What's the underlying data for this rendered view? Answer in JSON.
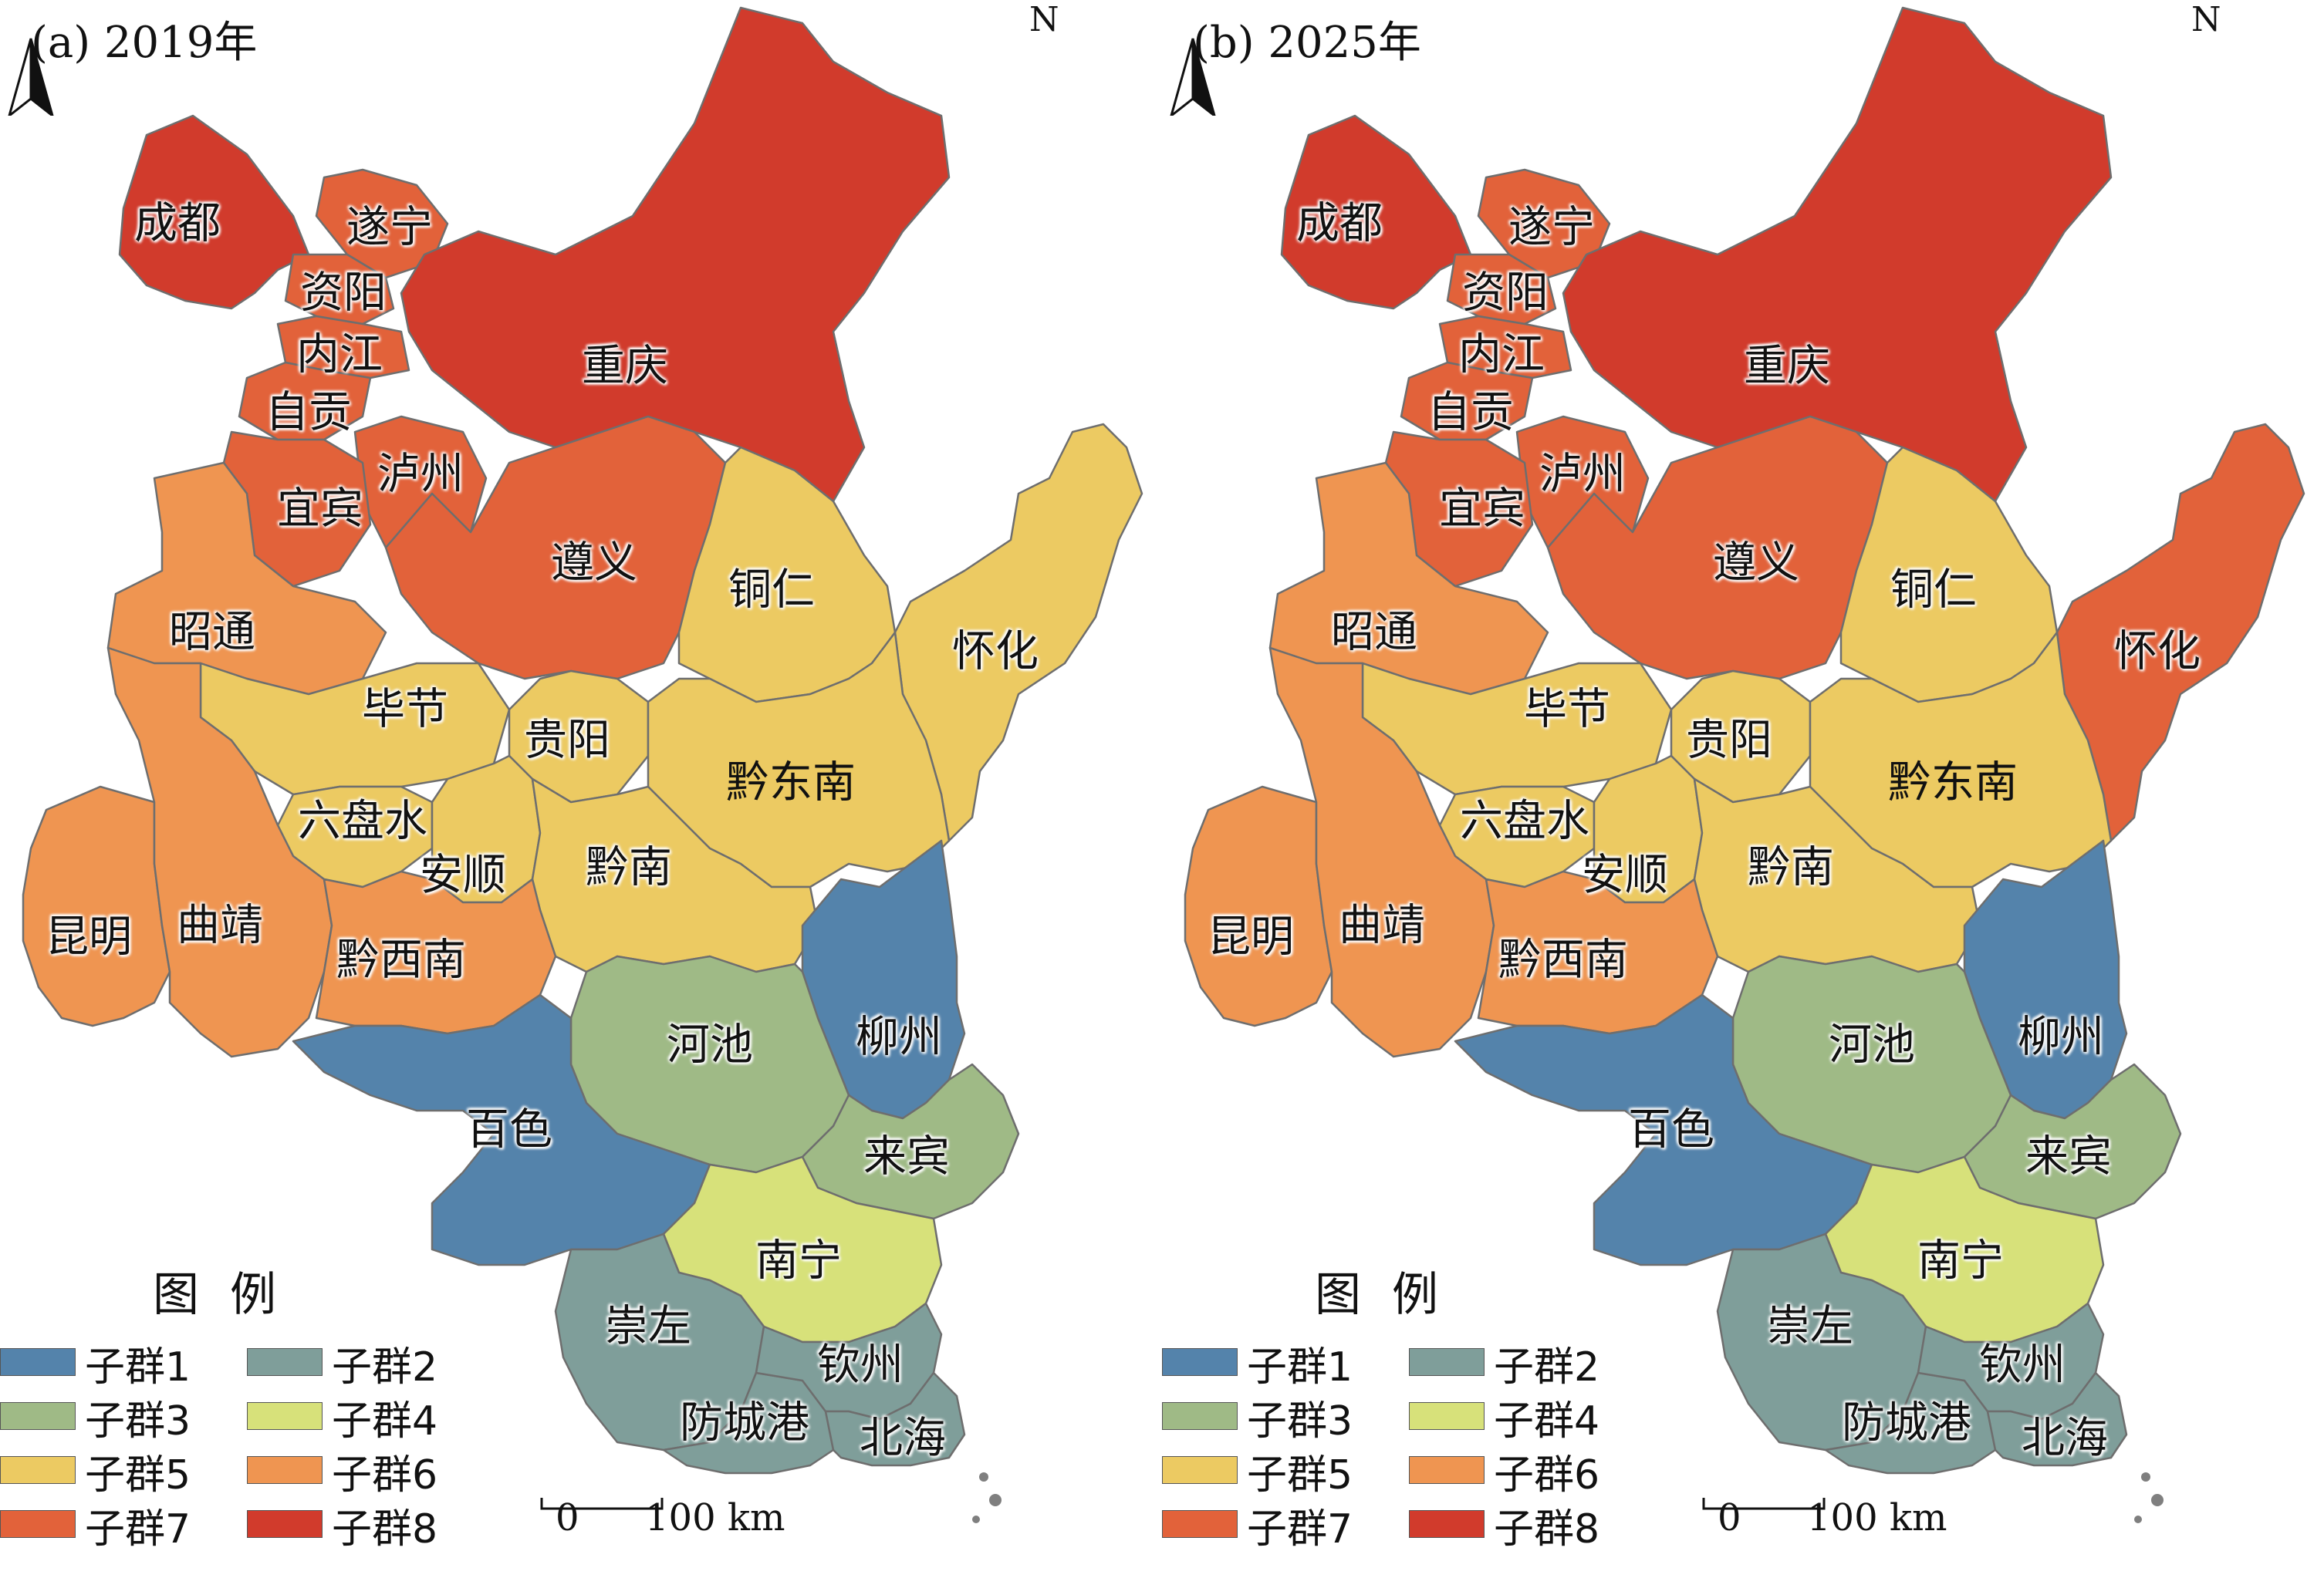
{
  "colors": {
    "子群1": "#5483ab",
    "子群2": "#7f9e9a",
    "子群3": "#9fba86",
    "子群4": "#d7e17a",
    "子群5": "#ecca62",
    "子群6": "#ef9551",
    "子群7": "#e2623a",
    "子群8": "#d13b2c",
    "border": "#6e6e6e"
  },
  "legend": {
    "title": "图例",
    "items": [
      "子群1",
      "子群2",
      "子群3",
      "子群4",
      "子群5",
      "子群6",
      "子群7",
      "子群8"
    ]
  },
  "north": "N",
  "scale": {
    "zero": "0",
    "max": "100 km"
  },
  "panels": [
    {
      "title": "(a) 2019年",
      "assignments": {
        "成都": "子群8",
        "重庆": "子群8",
        "遂宁": "子群7",
        "资阳": "子群7",
        "内江": "子群7",
        "自贡": "子群7",
        "泸州": "子群7",
        "宜宾": "子群7",
        "遵义": "子群7",
        "昭通": "子群6",
        "昆明": "子群6",
        "曲靖": "子群6",
        "黔西南": "子群6",
        "铜仁": "子群5",
        "怀化": "子群5",
        "毕节": "子群5",
        "贵阳": "子群5",
        "黔东南": "子群5",
        "六盘水": "子群5",
        "安顺": "子群5",
        "黔南": "子群5",
        "南宁": "子群4",
        "河池": "子群3",
        "来宾": "子群3",
        "崇左": "子群2",
        "防城港": "子群2",
        "钦州": "子群2",
        "北海": "子群2",
        "百色": "子群1",
        "柳州": "子群1"
      }
    },
    {
      "title": "(b) 2025年",
      "assignments": {
        "成都": "子群8",
        "重庆": "子群8",
        "遂宁": "子群7",
        "资阳": "子群7",
        "内江": "子群7",
        "自贡": "子群7",
        "泸州": "子群7",
        "宜宾": "子群7",
        "遵义": "子群7",
        "怀化": "子群7",
        "昭通": "子群6",
        "昆明": "子群6",
        "曲靖": "子群6",
        "黔西南": "子群6",
        "铜仁": "子群5",
        "毕节": "子群5",
        "贵阳": "子群5",
        "黔东南": "子群5",
        "六盘水": "子群5",
        "安顺": "子群5",
        "黔南": "子群5",
        "南宁": "子群4",
        "河池": "子群3",
        "来宾": "子群3",
        "崇左": "子群2",
        "防城港": "子群2",
        "钦州": "子群2",
        "北海": "子群2",
        "百色": "子群1",
        "柳州": "子群1"
      }
    }
  ]
}
